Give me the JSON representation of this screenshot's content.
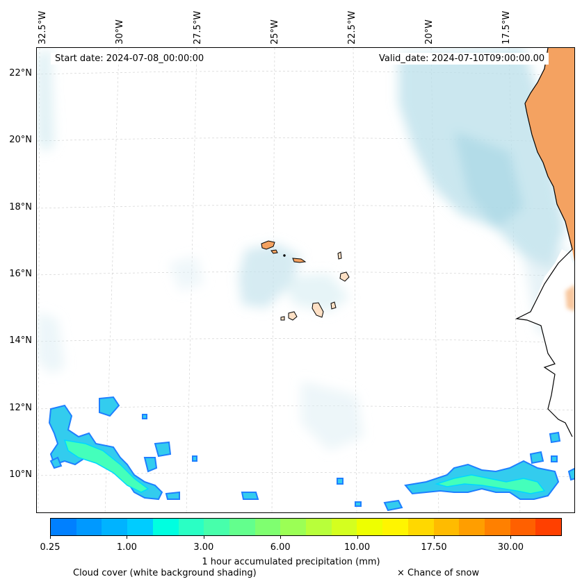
{
  "map": {
    "start_date": "Start date: 2024-07-08_00:00:00",
    "valid_date": "Valid_date: 2024-07-10T09:00:00.00",
    "lon_labels": [
      "32.5°W",
      "30°W",
      "27.5°W",
      "25°W",
      "22.5°W",
      "20°W",
      "17.5°W"
    ],
    "lat_labels": [
      "22°N",
      "20°N",
      "18°N",
      "16°N",
      "14°N",
      "12°N",
      "10°N"
    ],
    "land_color": "#f4a261",
    "cloud_color": "#a8d8e8",
    "precip_color": "#1e90ff"
  },
  "colorbar": {
    "colors": [
      "#0080ff",
      "#0099ff",
      "#00b3ff",
      "#00ccff",
      "#00ffe0",
      "#2affc4",
      "#47ffab",
      "#63ff8d",
      "#7fff70",
      "#9bff55",
      "#b8ff3a",
      "#d4ff1f",
      "#eeff00",
      "#fff500",
      "#ffd800",
      "#ffbb00",
      "#ff9e00",
      "#ff8000",
      "#ff6000",
      "#ff4000"
    ],
    "ticks": [
      {
        "label": "0.25",
        "frac": 0.0
      },
      {
        "label": "1.00",
        "frac": 0.15
      },
      {
        "label": "3.00",
        "frac": 0.3
      },
      {
        "label": "6.00",
        "frac": 0.45
      },
      {
        "label": "10.00",
        "frac": 0.6
      },
      {
        "label": "17.50",
        "frac": 0.75
      },
      {
        "label": "30.00",
        "frac": 0.9
      }
    ],
    "label": "1 hour accumulated precipitation (mm)"
  },
  "legend": {
    "cloud_text": "Cloud cover (white background shading)",
    "snow_text": "× Chance of snow"
  }
}
